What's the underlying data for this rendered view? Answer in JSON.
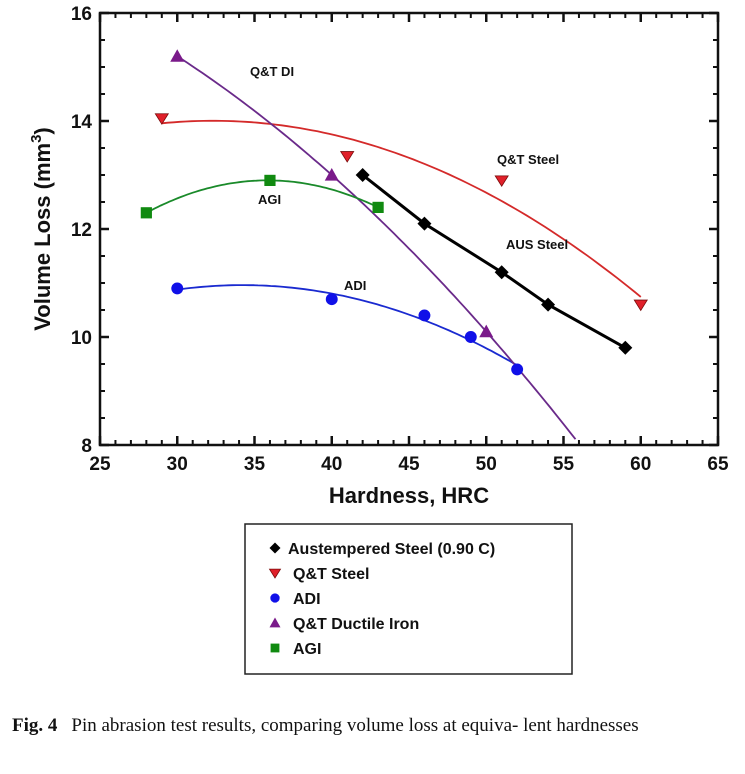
{
  "chart_data": {
    "type": "scatter",
    "xlabel": "Hardness, HRC",
    "ylabel_main": "Volume Loss (mm",
    "ylabel_sup": "3",
    "ylabel_close": ")",
    "xlim": [
      25,
      65
    ],
    "ylim": [
      8,
      16
    ],
    "xticks": [
      25,
      30,
      35,
      40,
      45,
      50,
      55,
      60,
      65
    ],
    "yticks": [
      8,
      10,
      12,
      14,
      16
    ],
    "grid": false,
    "legend_position": "below",
    "series": [
      {
        "name": "Austempered Steel (0.90 C)",
        "marker": "diamond",
        "color": "#000000",
        "fit": "line",
        "annotation": "AUS Steel",
        "x": [
          42,
          46,
          51,
          54,
          59
        ],
        "y": [
          13.0,
          12.1,
          11.2,
          10.6,
          9.8
        ]
      },
      {
        "name": "Q&T Steel",
        "marker": "triangle-down",
        "color": "#e0202a",
        "line_color": "#d42a2a",
        "fit": "quadratic",
        "annotation": "Q&T Steel",
        "x": [
          29,
          41,
          51,
          60
        ],
        "y": [
          14.05,
          13.35,
          12.9,
          10.6
        ]
      },
      {
        "name": "ADI",
        "marker": "circle",
        "color": "#1010e8",
        "line_color": "#1a2ad0",
        "fit": "quadratic",
        "annotation": "ADI",
        "x": [
          30,
          40,
          46,
          49,
          52
        ],
        "y": [
          10.9,
          10.7,
          10.4,
          10.0,
          9.4
        ]
      },
      {
        "name": "Q&T Ductile Iron",
        "marker": "triangle-up",
        "color": "#7a1a8a",
        "line_color": "#6a2a8a",
        "fit": "quadratic",
        "annotation": "Q&T DI",
        "x": [
          30,
          40,
          50
        ],
        "y": [
          15.2,
          13.0,
          10.1
        ]
      },
      {
        "name": "AGI",
        "marker": "square",
        "color": "#108a10",
        "line_color": "#1a8a2a",
        "fit": "quadratic",
        "annotation": "AGI",
        "x": [
          28,
          36,
          43
        ],
        "y": [
          12.3,
          12.9,
          12.4
        ]
      }
    ]
  },
  "caption": {
    "label": "Fig. 4",
    "text": "Pin abrasion test results, comparing volume loss at equiva- lent hardnesses"
  }
}
